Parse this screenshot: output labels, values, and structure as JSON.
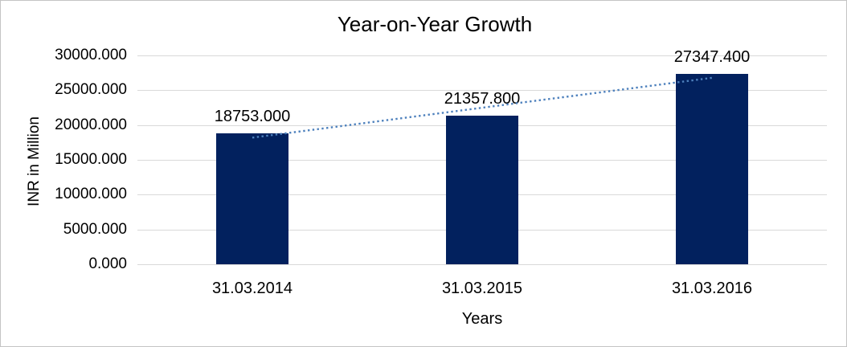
{
  "chart_data": {
    "type": "bar",
    "title": "Year-on-Year Growth",
    "xlabel": "Years",
    "ylabel": "INR in Million",
    "categories": [
      "31.03.2014",
      "31.03.2015",
      "31.03.2016"
    ],
    "values": [
      18753.0,
      21357.8,
      27347.4
    ],
    "data_labels": [
      "18753.000",
      "21357.800",
      "27347.400"
    ],
    "ylim": [
      0,
      30000
    ],
    "y_ticks": [
      0,
      5000,
      10000,
      15000,
      20000,
      25000,
      30000
    ],
    "y_tick_labels": [
      "0.000",
      "5000.000",
      "10000.000",
      "15000.000",
      "20000.000",
      "25000.000",
      "30000.000"
    ],
    "grid": true,
    "legend": "none",
    "bar_color": "#02215E",
    "gridline_color": "#d9d9d9",
    "trendline": {
      "type": "linear",
      "style": "dotted",
      "color": "#4E81BD"
    }
  }
}
